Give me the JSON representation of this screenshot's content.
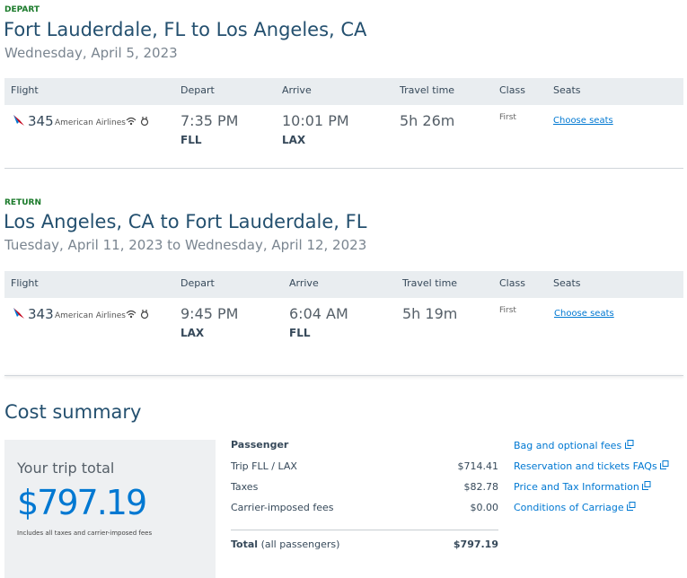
{
  "depart": {
    "label": "DEPART",
    "title": "Fort Lauderdale, FL to Los Angeles, CA",
    "date": "Wednesday, April 5, 2023",
    "columns": [
      "Flight",
      "Depart",
      "Arrive",
      "Travel time",
      "Class",
      "Seats"
    ],
    "flight": {
      "number": "345",
      "airline": "American Airlines",
      "depart_time": "7:35 PM",
      "depart_airport": "FLL",
      "arrive_time": "10:01 PM",
      "arrive_airport": "LAX",
      "travel_time": "5h 26m",
      "class": "First",
      "seats_link": "Choose seats"
    }
  },
  "return": {
    "label": "RETURN",
    "title": "Los Angeles, CA to Fort Lauderdale, FL",
    "date": "Tuesday, April 11, 2023 to Wednesday, April 12, 2023",
    "columns": [
      "Flight",
      "Depart",
      "Arrive",
      "Travel time",
      "Class",
      "Seats"
    ],
    "flight": {
      "number": "343",
      "airline": "American Airlines",
      "depart_time": "9:45 PM",
      "depart_airport": "LAX",
      "arrive_time": "6:04 AM",
      "arrive_airport": "FLL",
      "travel_time": "5h 19m",
      "class": "First",
      "seats_link": "Choose seats"
    }
  },
  "cost_summary": {
    "title": "Cost summary",
    "trip_total_label": "Your trip total",
    "trip_total": "$797.19",
    "note": "Includes all taxes and carrier-imposed fees",
    "passenger_header": "Passenger",
    "rows": [
      [
        "Trip FLL / LAX",
        "$714.41"
      ],
      [
        "Taxes",
        "$82.78"
      ],
      [
        "Carrier-imposed fees",
        "$0.00"
      ]
    ],
    "total_label": "Total",
    "total_qualifier": "(all passengers)",
    "total_value": "$797.19",
    "links": [
      "Bag and optional fees",
      "Reservation and tickets FAQs",
      "Price and Tax Information",
      "Conditions of Carriage"
    ]
  }
}
